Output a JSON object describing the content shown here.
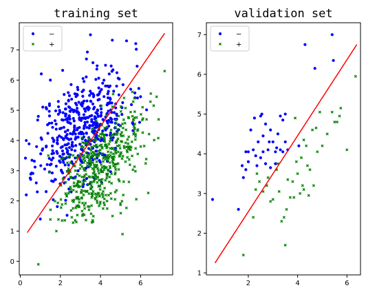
{
  "chart_data": [
    {
      "type": "scatter",
      "title": "training set",
      "xlabel": "",
      "ylabel": "",
      "xlim": [
        -0.05,
        7.6
      ],
      "ylim": [
        -0.45,
        7.9
      ],
      "xticks": [
        0,
        2,
        4,
        6
      ],
      "yticks": [
        0,
        1,
        2,
        3,
        4,
        5,
        6,
        7
      ],
      "legend": "top-left",
      "grid": false,
      "series": [
        {
          "name": "−",
          "marker": "circle",
          "color": "#0000ff",
          "count": 500,
          "seed": 11,
          "center": [
            3.1,
            4.45
          ],
          "spread": [
            1.15,
            0.98
          ],
          "corr": 0.45,
          "clip": {
            "x": [
              0.25,
              6.3
            ],
            "y": [
              0.9,
              7.35
            ]
          },
          "points": [
            [
              3.5,
              7.5
            ],
            [
              6.0,
              5.45
            ],
            [
              5.3,
              7.3
            ],
            [
              0.85,
              2.3
            ],
            [
              1.0,
              1.4
            ],
            [
              0.3,
              2.2
            ],
            [
              0.3,
              4.0
            ],
            [
              0.9,
              4.8
            ],
            [
              1.5,
              6.0
            ],
            [
              3.3,
              6.7
            ]
          ]
        },
        {
          "name": "+",
          "marker": "x",
          "color": "#008000",
          "count": 500,
          "seed": 29,
          "center": [
            3.9,
            3.1
          ],
          "spread": [
            1.05,
            0.95
          ],
          "corr": 0.55,
          "clip": {
            "x": [
              1.1,
              7.0
            ],
            "y": [
              0.95,
              6.0
            ]
          },
          "points": [
            [
              0.9,
              -0.1
            ],
            [
              7.2,
              6.3
            ],
            [
              6.3,
              4.7
            ],
            [
              6.1,
              5.1
            ],
            [
              6.8,
              5.45
            ],
            [
              1.8,
              1.0
            ],
            [
              4.6,
              1.5
            ],
            [
              1.4,
              3.5
            ],
            [
              6.9,
              4.7
            ],
            [
              5.1,
              0.9
            ]
          ]
        },
        {
          "name": "",
          "type": "line",
          "color": "#ff0000",
          "x": [
            0.35,
            7.2
          ],
          "y": [
            0.95,
            7.55
          ]
        }
      ]
    },
    {
      "type": "scatter",
      "title": "validation set",
      "xlabel": "",
      "ylabel": "",
      "xlim": [
        0.3,
        6.55
      ],
      "ylim": [
        0.95,
        7.3
      ],
      "xticks": [
        2,
        4,
        6
      ],
      "yticks": [
        1,
        2,
        3,
        4,
        5,
        6,
        7
      ],
      "legend": "top-left",
      "grid": false,
      "series": [
        {
          "name": "−",
          "marker": "circle",
          "color": "#0000ff",
          "points": [
            [
              0.55,
              2.85
            ],
            [
              1.6,
              2.6
            ],
            [
              1.8,
              3.4
            ],
            [
              1.9,
              3.6
            ],
            [
              2.0,
              3.8
            ],
            [
              2.1,
              4.6
            ],
            [
              2.25,
              4.9
            ],
            [
              2.5,
              4.95
            ],
            [
              2.7,
              4.75
            ],
            [
              2.9,
              4.6
            ],
            [
              3.0,
              4.3
            ],
            [
              3.2,
              4.5
            ],
            [
              3.4,
              4.85
            ],
            [
              2.2,
              4.1
            ],
            [
              2.4,
              4.3
            ],
            [
              2.6,
              4.05
            ],
            [
              2.8,
              4.1
            ],
            [
              3.1,
              4.05
            ],
            [
              3.3,
              4.1
            ],
            [
              3.5,
              4.3
            ],
            [
              2.0,
              4.05
            ],
            [
              2.3,
              3.95
            ],
            [
              2.5,
              3.9
            ],
            [
              2.7,
              3.75
            ],
            [
              2.9,
              3.65
            ],
            [
              3.5,
              5.0
            ],
            [
              3.6,
              4.1
            ],
            [
              3.15,
              4.15
            ],
            [
              4.05,
              4.2
            ],
            [
              4.3,
              6.75
            ],
            [
              4.7,
              6.15
            ],
            [
              5.4,
              7.0
            ],
            [
              5.45,
              6.35
            ],
            [
              3.3,
              4.95
            ],
            [
              1.9,
              4.05
            ],
            [
              2.6,
              4.45
            ],
            [
              2.85,
              4.3
            ],
            [
              3.4,
              4.05
            ],
            [
              1.75,
              3.7
            ],
            [
              2.35,
              3.7
            ],
            [
              2.55,
              5.0
            ],
            [
              3.1,
              3.75
            ]
          ]
        },
        {
          "name": "+",
          "marker": "x",
          "color": "#008000",
          "points": [
            [
              1.8,
              1.45
            ],
            [
              2.2,
              2.4
            ],
            [
              2.3,
              3.1
            ],
            [
              2.45,
              3.3
            ],
            [
              2.6,
              3.05
            ],
            [
              2.8,
              3.4
            ],
            [
              3.0,
              2.85
            ],
            [
              3.2,
              3.75
            ],
            [
              3.35,
              2.3
            ],
            [
              3.5,
              1.7
            ],
            [
              3.55,
              2.6
            ],
            [
              3.7,
              2.9
            ],
            [
              3.8,
              3.3
            ],
            [
              3.9,
              4.9
            ],
            [
              4.0,
              3.5
            ],
            [
              4.1,
              3.0
            ],
            [
              4.2,
              3.2
            ],
            [
              4.25,
              4.35
            ],
            [
              4.4,
              3.7
            ],
            [
              4.5,
              3.6
            ],
            [
              4.6,
              4.6
            ],
            [
              4.75,
              4.65
            ],
            [
              4.9,
              5.05
            ],
            [
              5.0,
              4.2
            ],
            [
              5.2,
              4.5
            ],
            [
              5.4,
              5.05
            ],
            [
              5.5,
              4.8
            ],
            [
              5.7,
              4.95
            ],
            [
              6.0,
              4.1
            ],
            [
              6.35,
              5.95
            ],
            [
              5.75,
              5.15
            ],
            [
              4.65,
              3.2
            ],
            [
              4.35,
              4.2
            ],
            [
              3.85,
              2.9
            ],
            [
              4.45,
              2.95
            ],
            [
              3.25,
              3.05
            ],
            [
              2.35,
              3.5
            ],
            [
              2.9,
              2.8
            ],
            [
              4.8,
              4.05
            ],
            [
              3.6,
              3.35
            ],
            [
              4.25,
              3.1
            ],
            [
              5.6,
              4.8
            ],
            [
              3.45,
              2.4
            ],
            [
              4.15,
              3.9
            ],
            [
              2.75,
              3.2
            ],
            [
              3.95,
              3.8
            ],
            [
              3.15,
              3.6
            ]
          ]
        },
        {
          "name": "",
          "type": "line",
          "color": "#ff0000",
          "x": [
            0.65,
            6.4
          ],
          "y": [
            1.25,
            6.75
          ]
        }
      ]
    }
  ]
}
